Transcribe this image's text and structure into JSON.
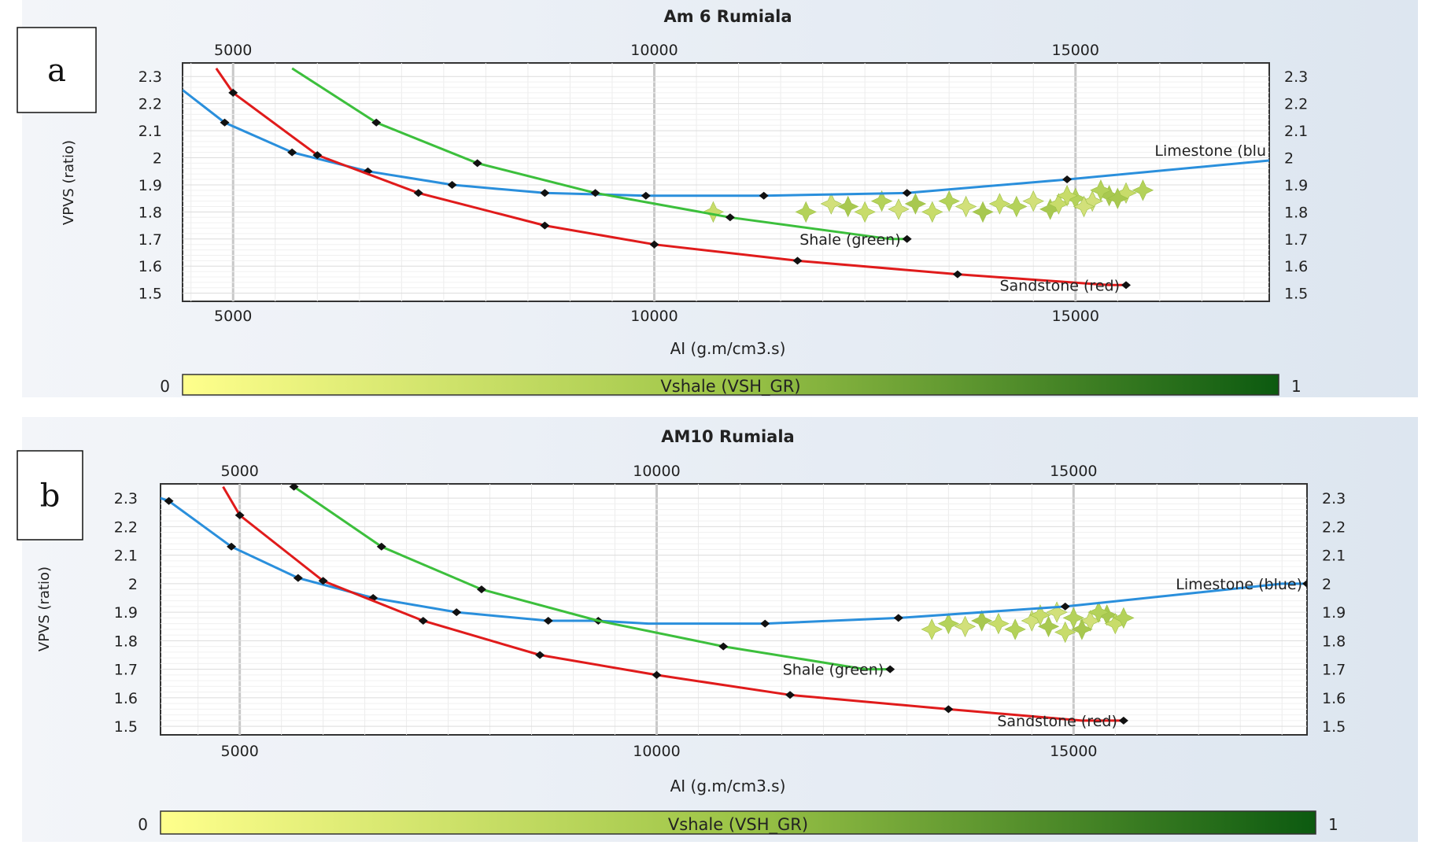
{
  "chart_data": [
    {
      "panel_label": "a",
      "type": "line",
      "title": "Am 6 Rumiala",
      "xlabel": "AI (g.m/cm3.s)",
      "ylabel": "VPVS (ratio)",
      "xlim": [
        4400,
        17300
      ],
      "ylim": [
        1.47,
        2.35
      ],
      "xticks": [
        5000,
        10000,
        15000
      ],
      "yticks": [
        1.5,
        1.6,
        1.7,
        1.8,
        1.9,
        2,
        2.1,
        2.2,
        2.3
      ],
      "grid": true,
      "series": [
        {
          "name": "Limestone (blu",
          "color": "#2a8fdc",
          "x": [
            4400,
            4900,
            5700,
            6600,
            7600,
            8700,
            9900,
            11300,
            13000,
            14900,
            17300
          ],
          "y": [
            2.25,
            2.13,
            2.02,
            1.95,
            1.9,
            1.87,
            1.86,
            1.86,
            1.87,
            1.92,
            1.99
          ],
          "markers": [
            false,
            true,
            true,
            true,
            true,
            true,
            true,
            true,
            true,
            true,
            false
          ]
        },
        {
          "name": "Shale (green)",
          "color": "#3cbf3c",
          "x": [
            5700,
            6700,
            7900,
            9300,
            10900,
            12800,
            13000
          ],
          "y": [
            2.33,
            2.13,
            1.98,
            1.87,
            1.78,
            1.7,
            1.7
          ],
          "markers": [
            false,
            true,
            true,
            true,
            true,
            false,
            true
          ]
        },
        {
          "name": "Sandstone (red)",
          "color": "#e01b1b",
          "x": [
            4800,
            5000,
            6000,
            7200,
            8700,
            10000,
            11700,
            13600,
            15400,
            15600
          ],
          "y": [
            2.33,
            2.24,
            2.01,
            1.87,
            1.75,
            1.68,
            1.62,
            1.57,
            1.53,
            1.53
          ],
          "markers": [
            false,
            true,
            true,
            true,
            true,
            true,
            true,
            true,
            false,
            true
          ]
        }
      ],
      "scatter": {
        "name": "Vshale (VSH_GR)",
        "points": [
          [
            10700,
            1.8
          ],
          [
            11800,
            1.8
          ],
          [
            12100,
            1.83
          ],
          [
            12300,
            1.82
          ],
          [
            12500,
            1.8
          ],
          [
            12700,
            1.84
          ],
          [
            12900,
            1.81
          ],
          [
            13100,
            1.83
          ],
          [
            13300,
            1.8
          ],
          [
            13500,
            1.84
          ],
          [
            13700,
            1.82
          ],
          [
            13900,
            1.8
          ],
          [
            14100,
            1.83
          ],
          [
            14300,
            1.82
          ],
          [
            14500,
            1.84
          ],
          [
            14700,
            1.81
          ],
          [
            14800,
            1.83
          ],
          [
            15000,
            1.85
          ],
          [
            15200,
            1.84
          ],
          [
            15400,
            1.86
          ],
          [
            15600,
            1.87
          ],
          [
            15800,
            1.88
          ],
          [
            15100,
            1.82
          ],
          [
            15500,
            1.85
          ],
          [
            14900,
            1.86
          ],
          [
            15300,
            1.88
          ]
        ]
      },
      "colorbar": {
        "label": "Vshale (VSH_GR)",
        "min_label": "0",
        "max_label": "1",
        "from_color": "#ffff88",
        "to_color": "#0f5a0f"
      }
    },
    {
      "panel_label": "b",
      "type": "line",
      "title": "AM10 Rumiala",
      "xlabel": "AI (g.m/cm3.s)",
      "ylabel": "VPVS (ratio)",
      "xlim": [
        4050,
        17800
      ],
      "ylim": [
        1.47,
        2.35
      ],
      "xticks": [
        5000,
        10000,
        15000
      ],
      "yticks": [
        1.5,
        1.6,
        1.7,
        1.8,
        1.9,
        2,
        2.1,
        2.2,
        2.3
      ],
      "grid": true,
      "series": [
        {
          "name": "Limestone (blue)",
          "color": "#2a8fdc",
          "x": [
            4050,
            4150,
            4900,
            5700,
            6600,
            7600,
            8700,
            9300,
            9900,
            11300,
            12900,
            14900,
            17500,
            17800
          ],
          "y": [
            2.3,
            2.29,
            2.13,
            2.02,
            1.95,
            1.9,
            1.87,
            1.87,
            1.86,
            1.86,
            1.88,
            1.92,
            2.0,
            2.0
          ],
          "markers": [
            false,
            true,
            true,
            true,
            true,
            true,
            true,
            true,
            false,
            true,
            true,
            true,
            false,
            true
          ]
        },
        {
          "name": "Shale (green)",
          "color": "#3cbf3c",
          "x": [
            5650,
            6700,
            7900,
            9300,
            10800,
            12500,
            12800
          ],
          "y": [
            2.34,
            2.13,
            1.98,
            1.87,
            1.78,
            1.7,
            1.7
          ],
          "markers": [
            true,
            true,
            true,
            false,
            true,
            false,
            true
          ]
        },
        {
          "name": "Sandstone (red)",
          "color": "#e01b1b",
          "x": [
            4800,
            5000,
            6000,
            7200,
            8600,
            10000,
            11600,
            13500,
            15100,
            15600
          ],
          "y": [
            2.34,
            2.24,
            2.01,
            1.87,
            1.75,
            1.68,
            1.61,
            1.56,
            1.52,
            1.52
          ],
          "markers": [
            false,
            true,
            true,
            true,
            true,
            true,
            true,
            true,
            false,
            true
          ]
        }
      ],
      "scatter": {
        "name": "Vshale (VSH_GR)",
        "points": [
          [
            13300,
            1.84
          ],
          [
            13500,
            1.86
          ],
          [
            13700,
            1.85
          ],
          [
            13900,
            1.87
          ],
          [
            14100,
            1.86
          ],
          [
            14300,
            1.84
          ],
          [
            14500,
            1.87
          ],
          [
            14700,
            1.85
          ],
          [
            14900,
            1.83
          ],
          [
            15000,
            1.88
          ],
          [
            15200,
            1.87
          ],
          [
            15400,
            1.89
          ],
          [
            15500,
            1.86
          ],
          [
            15600,
            1.88
          ],
          [
            14800,
            1.9
          ],
          [
            15100,
            1.84
          ],
          [
            14600,
            1.89
          ],
          [
            15300,
            1.9
          ]
        ]
      },
      "colorbar": {
        "label": "Vshale (VSH_GR)",
        "min_label": "0",
        "max_label": "1",
        "from_color": "#ffff88",
        "to_color": "#0f5a0f"
      }
    }
  ]
}
